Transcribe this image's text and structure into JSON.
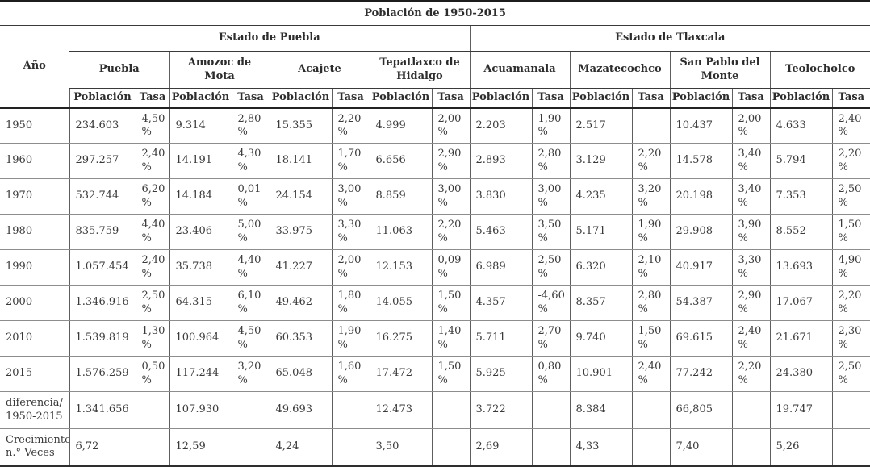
{
  "table": {
    "title": "Población de 1950-2015",
    "year_header": "Año",
    "groups": [
      {
        "label": "Estado de Puebla",
        "cities": [
          "Puebla",
          "Amozoc de Mota",
          "Acajete",
          "Tepatlaxco de Hidalgo"
        ]
      },
      {
        "label": "Estado de Tlaxcala",
        "cities": [
          "Acuamanala",
          "Mazatecochco",
          "San Pablo del Monte",
          "Teolocholco"
        ]
      }
    ],
    "subheaders": {
      "poblacion": "Población",
      "tasa": "Tasa"
    },
    "rows": [
      {
        "label": "1950",
        "cells": [
          "234.603",
          "4,50 %",
          "9.314",
          "2,80 %",
          "15.355",
          "2,20 %",
          "4.999",
          "2,00 %",
          "2.203",
          "1,90 %",
          "2.517",
          "",
          "10.437",
          "2,00 %",
          "4.633",
          "2,40 %"
        ]
      },
      {
        "label": "1960",
        "cells": [
          "297.257",
          "2,40 %",
          "14.191",
          "4,30 %",
          "18.141",
          "1,70 %",
          "6.656",
          "2,90 %",
          "2.893",
          "2,80 %",
          "3.129",
          "2,20 %",
          "14.578",
          "3,40 %",
          "5.794",
          "2,20 %"
        ]
      },
      {
        "label": "1970",
        "cells": [
          "532.744",
          "6,20 %",
          "14.184",
          "0,01 %",
          "24.154",
          "3,00 %",
          "8.859",
          "3,00 %",
          "3.830",
          "3,00 %",
          "4.235",
          "3,20 %",
          "20.198",
          "3,40 %",
          "7.353",
          "2,50 %"
        ]
      },
      {
        "label": "1980",
        "cells": [
          "835.759",
          "4,40 %",
          "23.406",
          "5,00 %",
          "33.975",
          "3,30 %",
          "11.063",
          "2,20 %",
          "5.463",
          "3,50 %",
          "5.171",
          "1,90 %",
          "29.908",
          "3,90 %",
          "8.552",
          "1,50 %"
        ]
      },
      {
        "label": "1990",
        "cells": [
          "1.057.454",
          "2,40 %",
          "35.738",
          "4,40 %",
          "41.227",
          "2,00 %",
          "12.153",
          "0,09 %",
          "6.989",
          "2,50 %",
          "6.320",
          "2,10 %",
          "40.917",
          "3,30 %",
          "13.693",
          "4,90 %"
        ]
      },
      {
        "label": "2000",
        "cells": [
          "1.346.916",
          "2,50 %",
          "64.315",
          "6,10 %",
          "49.462",
          "1,80 %",
          "14.055",
          "1,50 %",
          "4.357",
          "-4,60 %",
          "8.357",
          "2,80 %",
          "54.387",
          "2,90 %",
          "17.067",
          "2,20 %"
        ]
      },
      {
        "label": "2010",
        "cells": [
          "1.539.819",
          "1,30 %",
          "100.964",
          "4,50 %",
          "60.353",
          "1,90 %",
          "16.275",
          "1,40 %",
          "5.711",
          "2,70 %",
          "9.740",
          "1,50 %",
          "69.615",
          "2,40 %",
          "21.671",
          "2,30 %"
        ]
      },
      {
        "label": "2015",
        "cells": [
          "1.576.259",
          "0,50 %",
          "117.244",
          "3,20 %",
          "65.048",
          "1,60 %",
          "17.472",
          "1,50 %",
          "5.925",
          "0,80 %",
          "10.901",
          "2,40 %",
          "77.242",
          "2,20 %",
          "24.380",
          "2,50 %"
        ]
      },
      {
        "label": "diferencia/\n1950-2015",
        "cells": [
          "1.341.656",
          "",
          "107.930",
          "",
          "49.693",
          "",
          "12.473",
          "",
          "3.722",
          "",
          "8.384",
          "",
          "66,805",
          "",
          "19.747",
          ""
        ]
      },
      {
        "label": "Crecimiento\nn.° Veces",
        "cells": [
          "6,72",
          "",
          "12,59",
          "",
          "4,24",
          "",
          "3,50",
          "",
          "2,69",
          "",
          "4,33",
          "",
          "7,40",
          "",
          "5,26",
          ""
        ]
      }
    ]
  }
}
